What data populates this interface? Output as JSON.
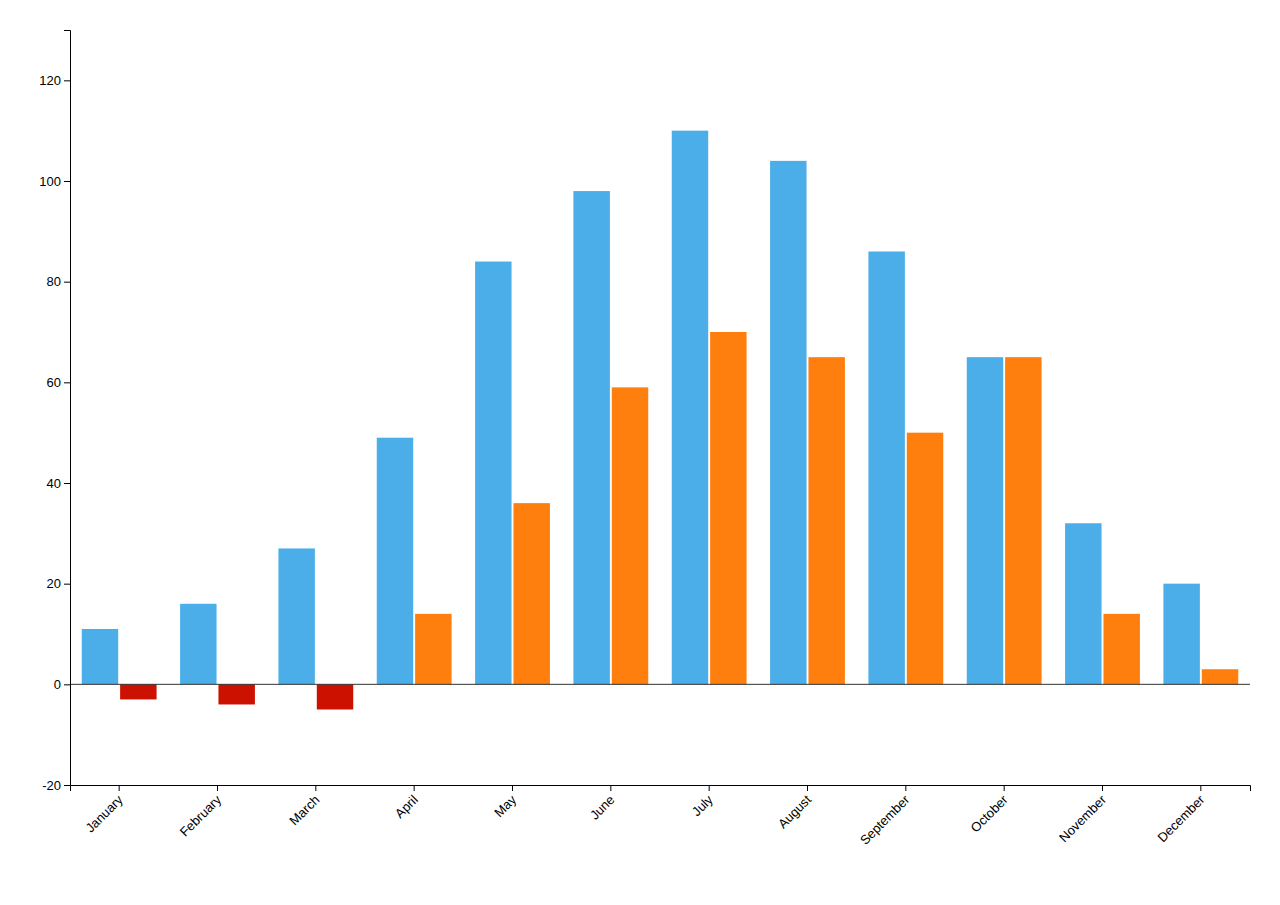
{
  "chart_data": {
    "type": "bar",
    "categories": [
      "January",
      "February",
      "March",
      "April",
      "May",
      "June",
      "July",
      "August",
      "September",
      "October",
      "November",
      "December"
    ],
    "series": [
      {
        "color": "#4baee8",
        "values": [
          11,
          16,
          27,
          49,
          84,
          98,
          110,
          104,
          86,
          65,
          32,
          20
        ]
      },
      {
        "colors": [
          "#cc1100",
          "#cc1100",
          "#cc1100",
          "#ff7f0e",
          "#ff7f0e",
          "#ff7f0e",
          "#ff7f0e",
          "#ff7f0e",
          "#ff7f0e",
          "#ff7f0e",
          "#ff7f0e",
          "#ff7f0e"
        ],
        "values": [
          -3,
          -4,
          -5,
          14,
          36,
          59,
          70,
          65,
          50,
          65,
          14,
          3
        ]
      }
    ],
    "ylim": [
      -20,
      130
    ],
    "yticks": [
      -20,
      0,
      20,
      40,
      60,
      80,
      100,
      120
    ],
    "grid": false
  }
}
